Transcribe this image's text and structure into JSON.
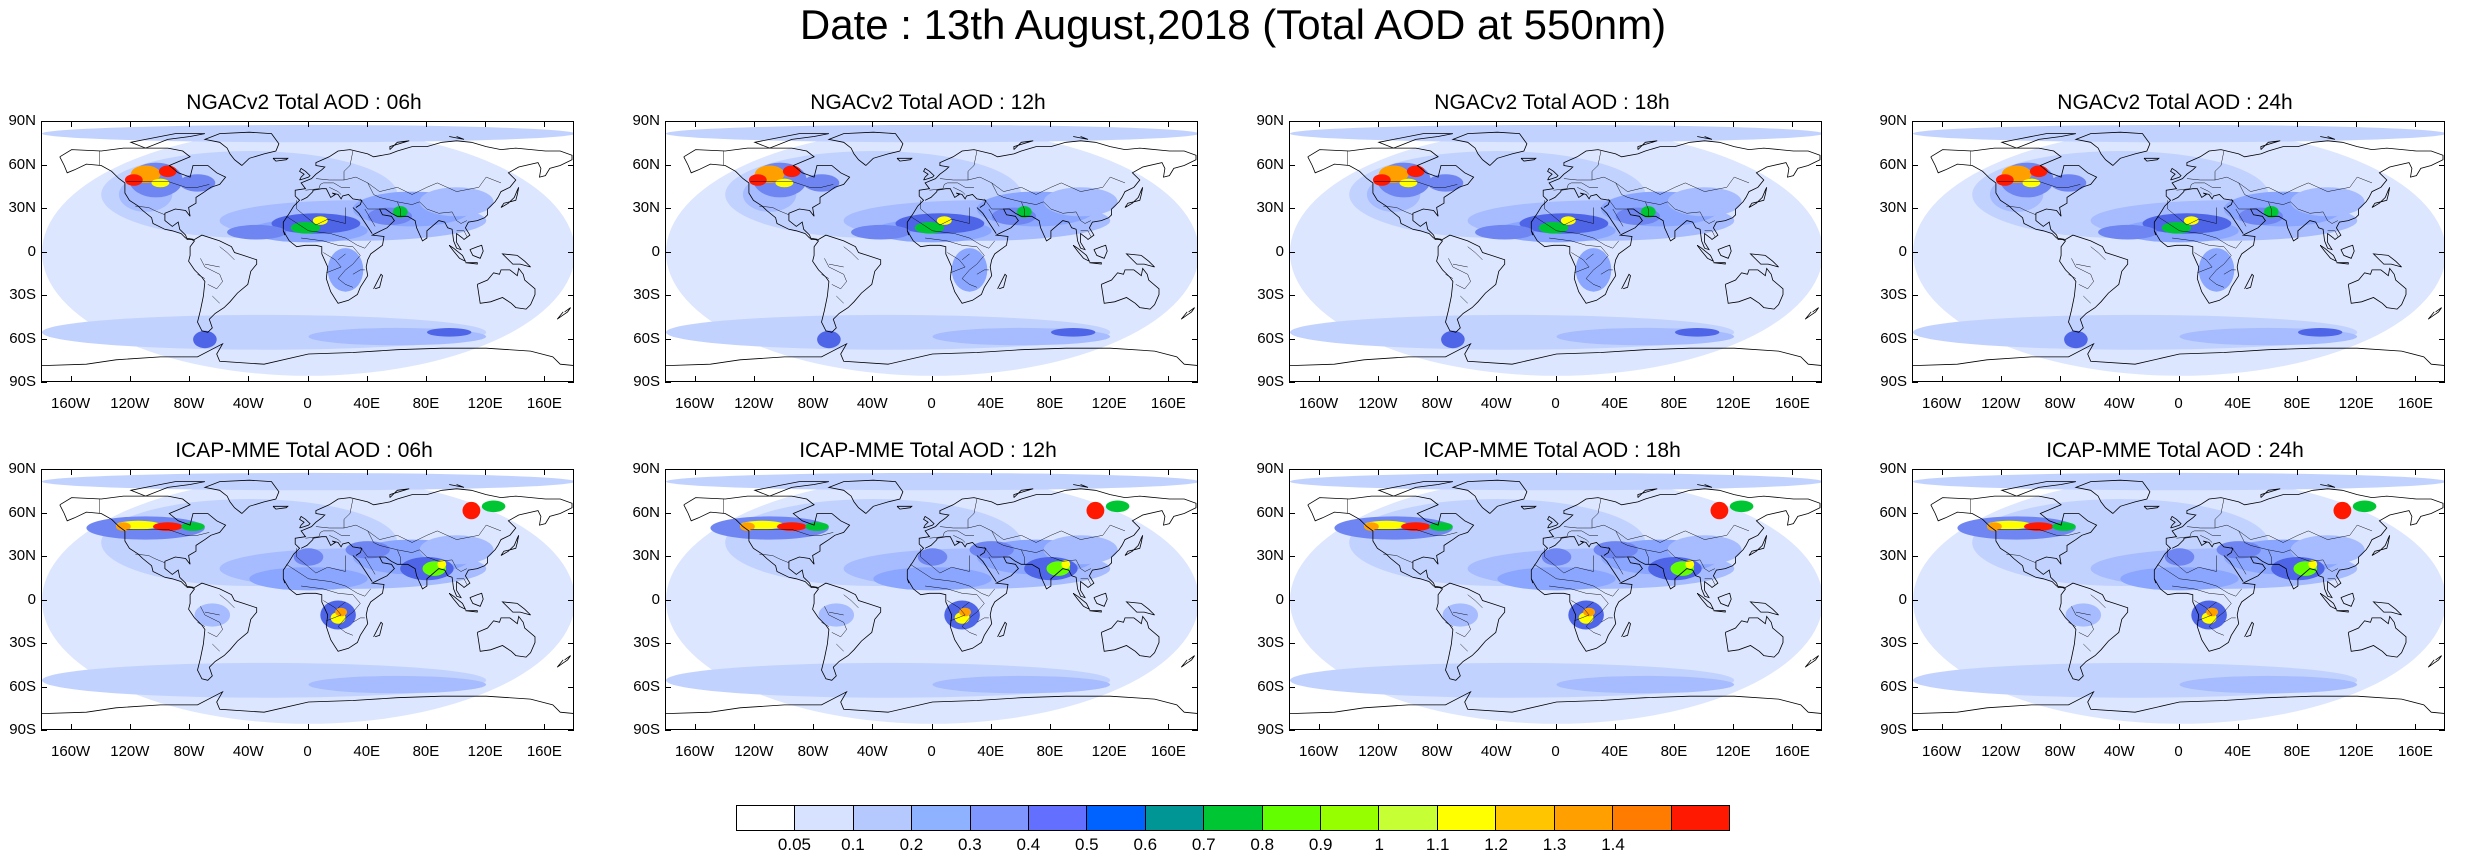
{
  "title": "Date : 13th August,2018 (Total AOD at 550nm)",
  "panels": [
    {
      "title": "NGACv2 Total AOD : 06h",
      "model": "ngac"
    },
    {
      "title": "NGACv2 Total AOD : 12h",
      "model": "ngac"
    },
    {
      "title": "NGACv2 Total AOD : 18h",
      "model": "ngac"
    },
    {
      "title": "NGACv2 Total AOD : 24h",
      "model": "ngac"
    },
    {
      "title": "ICAP-MME Total AOD : 06h",
      "model": "icap"
    },
    {
      "title": "ICAP-MME Total AOD : 12h",
      "model": "icap"
    },
    {
      "title": "ICAP-MME Total AOD : 18h",
      "model": "icap"
    },
    {
      "title": "ICAP-MME Total AOD : 24h",
      "model": "icap"
    }
  ],
  "lat_labels": [
    "90N",
    "60N",
    "30N",
    "0",
    "30S",
    "60S",
    "90S"
  ],
  "lon_labels": [
    "160W",
    "120W",
    "80W",
    "40W",
    "0",
    "40E",
    "80E",
    "120E",
    "160E"
  ],
  "colorbar": {
    "labels": [
      "0.05",
      "0.1",
      "0.2",
      "0.3",
      "0.4",
      "0.5",
      "0.6",
      "0.7",
      "0.8",
      "0.9",
      "1",
      "1.1",
      "1.2",
      "1.3",
      "1.4"
    ],
    "colors": [
      "#ffffff",
      "#d6e2ff",
      "#b5c9ff",
      "#8eb2ff",
      "#7f96ff",
      "#6370ff",
      "#0063ff",
      "#009696",
      "#00c633",
      "#63ff00",
      "#96ff00",
      "#c6ff33",
      "#ffff00",
      "#ffc600",
      "#ffa000",
      "#ff7c00",
      "#ff1900"
    ]
  }
}
